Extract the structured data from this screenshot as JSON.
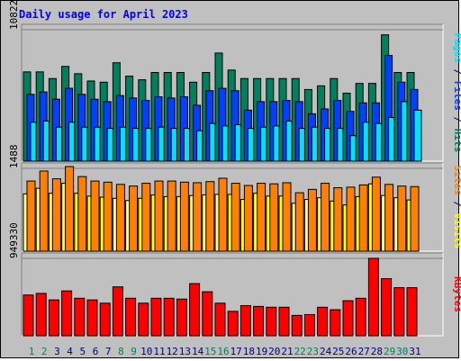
{
  "title": "Daily usage for April 2023",
  "colors": {
    "hits": "#00805c",
    "files": "#0040ff",
    "pages": "#00e0ff",
    "visits": "#ff8000",
    "sites": "#ffff00",
    "kbytes": "#ff0000",
    "weekend_label": "#00805c",
    "weekday_label": "#000080",
    "title": "#0000ff"
  },
  "chart_data": [
    {
      "type": "bar",
      "panel": "hits-files-pages",
      "ytick_label": "10822",
      "ymax": 10822,
      "right_label": {
        "parts": [
          {
            "text": "Pages",
            "color_key": "pages"
          },
          {
            "text": " / ",
            "color_key": "weekday_label"
          },
          {
            "text": "Files",
            "color_key": "files"
          },
          {
            "text": " / ",
            "color_key": "weekday_label"
          },
          {
            "text": "Hits",
            "color_key": "hits"
          }
        ]
      },
      "series": [
        {
          "name": "Hits",
          "values": [
            7350,
            7350,
            6800,
            7800,
            7200,
            6600,
            6500,
            8100,
            7000,
            6700,
            7300,
            7300,
            7300,
            6500,
            7300,
            8900,
            7500,
            6800,
            6800,
            6800,
            6800,
            6800,
            5900,
            6200,
            6800,
            5600,
            6400,
            6400,
            10400,
            7300,
            7300
          ]
        },
        {
          "name": "Files",
          "values": [
            5500,
            5700,
            5100,
            6000,
            5500,
            5100,
            4900,
            5400,
            5200,
            5000,
            5300,
            5200,
            5300,
            4600,
            5800,
            6000,
            5800,
            4200,
            4900,
            4900,
            5000,
            4900,
            3900,
            4300,
            5000,
            4100,
            4800,
            4800,
            8700,
            6500,
            5900
          ]
        },
        {
          "name": "Pages",
          "values": [
            3200,
            3300,
            2800,
            3200,
            2800,
            2800,
            2700,
            2800,
            2700,
            2700,
            2800,
            2700,
            2700,
            2500,
            3100,
            2900,
            3000,
            2700,
            2800,
            2900,
            3300,
            2700,
            2800,
            2700,
            2700,
            2100,
            3200,
            3100,
            3600,
            4900,
            4200
          ]
        }
      ]
    },
    {
      "type": "bar",
      "panel": "visits-sites",
      "ytick_label": "1488",
      "ymax": 1488,
      "right_label": {
        "parts": [
          {
            "text": "Sites",
            "color_key": "visits"
          },
          {
            "text": " / ",
            "color_key": "weekday_label"
          },
          {
            "text": "Visits",
            "color_key": "sites"
          }
        ]
      },
      "series": [
        {
          "name": "Visits",
          "values": [
            1260,
            1440,
            1300,
            1520,
            1340,
            1260,
            1240,
            1200,
            1170,
            1220,
            1260,
            1260,
            1240,
            1230,
            1250,
            1310,
            1220,
            1180,
            1220,
            1210,
            1230,
            1050,
            1110,
            1220,
            1140,
            1150,
            1190,
            1330,
            1200,
            1170,
            1160
          ]
        },
        {
          "name": "Sites",
          "values": [
            1030,
            1130,
            1040,
            1220,
            1040,
            990,
            970,
            950,
            910,
            950,
            1010,
            980,
            980,
            1000,
            1010,
            1020,
            1020,
            930,
            1040,
            990,
            990,
            860,
            930,
            960,
            900,
            830,
            980,
            1210,
            1000,
            960,
            920
          ]
        }
      ]
    },
    {
      "type": "bar",
      "panel": "kbytes",
      "ytick_label": "949330",
      "ymax": 949330,
      "right_label": {
        "parts": [
          {
            "text": "KBytes",
            "color_key": "kbytes"
          }
        ]
      },
      "series": [
        {
          "name": "KBytes",
          "values": [
            500000,
            520000,
            440000,
            550000,
            460000,
            440000,
            400000,
            600000,
            460000,
            400000,
            460000,
            460000,
            450000,
            640000,
            540000,
            400000,
            300000,
            370000,
            360000,
            350000,
            350000,
            250000,
            260000,
            350000,
            320000,
            430000,
            460000,
            950000,
            700000,
            590000,
            590000
          ]
        }
      ]
    }
  ],
  "days": [
    "1",
    "2",
    "3",
    "4",
    "5",
    "6",
    "7",
    "8",
    "9",
    "10",
    "11",
    "12",
    "13",
    "14",
    "15",
    "16",
    "17",
    "18",
    "19",
    "20",
    "21",
    "22",
    "23",
    "24",
    "25",
    "26",
    "27",
    "28",
    "29",
    "30",
    "31"
  ],
  "weekend_days": [
    "1",
    "2",
    "8",
    "9",
    "15",
    "16",
    "22",
    "23",
    "29",
    "30"
  ]
}
